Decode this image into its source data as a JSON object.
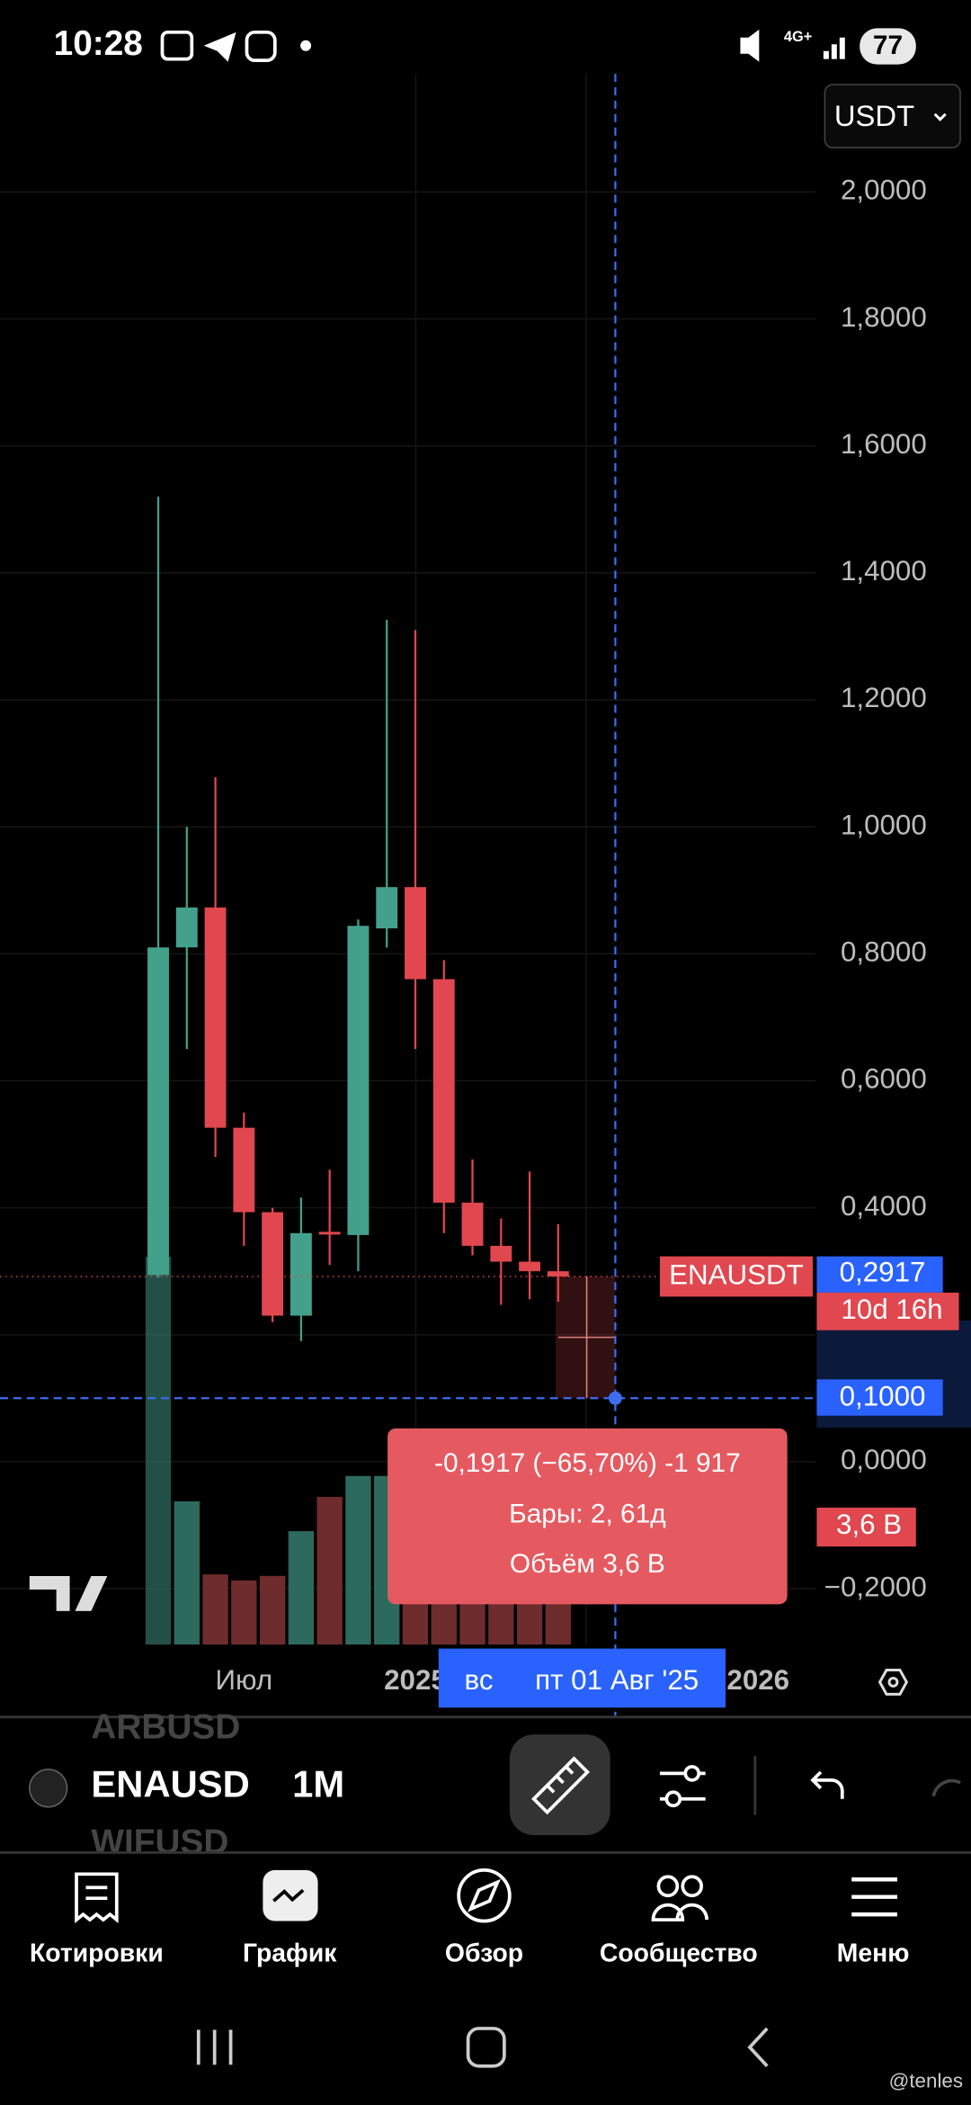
{
  "status_bar": {
    "time": "10:28",
    "network": "4G+",
    "battery": "77"
  },
  "currency": "USDT",
  "chart_data": {
    "type": "candlestick",
    "symbol_label": "ENAUSDT",
    "categories": [
      null,
      null,
      null,
      "Июл",
      null,
      null,
      null,
      null,
      null,
      "2025",
      null,
      null,
      null,
      null,
      null,
      null,
      null,
      null,
      null,
      null,
      null,
      "2026"
    ],
    "open": [
      0.294,
      0.81,
      0.873,
      0.526,
      0.393,
      0.23,
      0.362,
      0.357,
      0.84,
      0.905,
      0.76,
      0.408,
      0.34,
      0.315,
      0.3,
      null,
      null,
      null,
      null,
      null,
      null,
      null
    ],
    "high": [
      1.52,
      1.0,
      1.078,
      0.55,
      0.4,
      0.416,
      0.46,
      0.854,
      1.326,
      1.31,
      0.79,
      0.476,
      0.383,
      0.457,
      0.374,
      null,
      null,
      null,
      null,
      null,
      null,
      null
    ],
    "low": [
      0.29,
      0.65,
      0.48,
      0.34,
      0.22,
      0.19,
      0.31,
      0.3,
      0.81,
      0.65,
      0.36,
      0.325,
      0.247,
      0.256,
      0.252,
      null,
      null,
      null,
      null,
      null,
      null,
      null
    ],
    "close": [
      0.81,
      0.873,
      0.526,
      0.393,
      0.23,
      0.36,
      0.36,
      0.844,
      0.905,
      0.76,
      0.408,
      0.34,
      0.315,
      0.3,
      0.2917,
      null,
      null,
      null,
      null,
      null,
      null,
      null
    ],
    "volume": [
      26,
      9.6,
      4.7,
      4.3,
      4.6,
      7.6,
      9.9,
      11.3,
      11.3,
      8,
      6,
      5,
      4.5,
      4,
      3.6,
      null,
      null,
      null,
      null,
      null,
      null,
      null
    ],
    "vlim": [
      0,
      27
    ],
    "ylim": [
      -0.288,
      2.186
    ],
    "yticks": [
      {
        "value": 2,
        "label": "2,0000"
      },
      {
        "value": 1.8,
        "label": "1,8000"
      },
      {
        "value": 1.6,
        "label": "1,6000"
      },
      {
        "value": 1.4,
        "label": "1,4000"
      },
      {
        "value": 1.2,
        "label": "1,2000"
      },
      {
        "value": 1,
        "label": "1,0000"
      },
      {
        "value": 0.8,
        "label": "0,8000"
      },
      {
        "value": 0.6,
        "label": "0,6000"
      },
      {
        "value": 0.4,
        "label": "0,4000"
      },
      {
        "value": 0.2,
        "label": "0,2000"
      },
      {
        "value": 0,
        "label": "0,0000"
      },
      {
        "value": -0.2,
        "label": "−0,2000"
      }
    ],
    "grid": true,
    "up_color": "#43a08a",
    "down_color": "#e0474e",
    "last_price": {
      "value": 0.2917,
      "label": "0,2917"
    },
    "countdown": "10d 16h",
    "crosshair_price": {
      "value": 0.1,
      "label": "0,1000"
    },
    "crosshair_weekday": "вс",
    "crosshair_date": "пт 01 Авг '25",
    "last_volume_label": "3,6 B",
    "measure": {
      "change": "-0,1917 (−65,70%) -1 917",
      "bars": "Бары: 2, 61д",
      "volume": "Объём 3,6 B"
    }
  },
  "toolbar": {
    "prev": "ARBUSD",
    "symbol": "ENAUSD",
    "next": "WIFUSD",
    "interval": "1M"
  },
  "nav": [
    "Котировки",
    "График",
    "Обзор",
    "Сообщество",
    "Меню"
  ],
  "watermark": "@tenles"
}
